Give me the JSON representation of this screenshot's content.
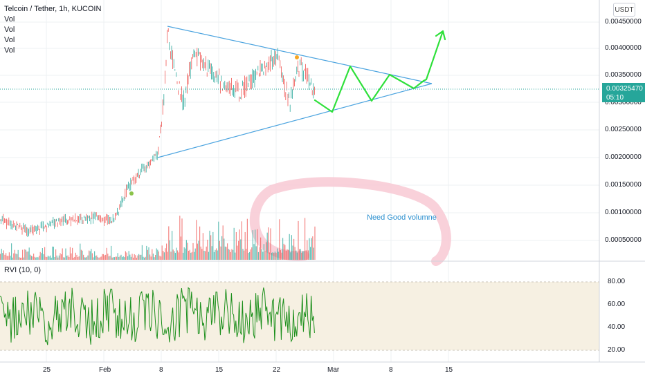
{
  "header": {
    "title": "Telcoin / Tether, 1h, KUCOIN",
    "currency": "USDT"
  },
  "indicators": {
    "volume_labels": [
      "Vol",
      "Vol",
      "Vol",
      "Vol"
    ],
    "rvi_label": "RVI (10, 0)"
  },
  "price_axis": {
    "ticks": [
      "0.00450000",
      "0.00400000",
      "0.00350000",
      "0.00300000",
      "0.00250000",
      "0.00200000",
      "0.00150000",
      "0.00100000",
      "0.00050000"
    ]
  },
  "rvi_axis": {
    "ticks": [
      "80.00",
      "60.00",
      "40.00",
      "20.00"
    ]
  },
  "time_axis": {
    "ticks": [
      "25",
      "Feb",
      "8",
      "15",
      "22",
      "Mar",
      "8",
      "15"
    ]
  },
  "last_price": {
    "value": "0.00325470",
    "countdown": "05:10"
  },
  "annotation": {
    "text": "Need Good volumne"
  },
  "colors": {
    "up": "#26a69a",
    "down": "#ef5350",
    "triangle": "#4aa3df",
    "projection": "#2ee03a",
    "rvi": "#1b8f1b",
    "rvi_band": "#f6f0e2",
    "annotation_text": "#2a8fcf",
    "highlight": "#f8c9d4"
  }
}
